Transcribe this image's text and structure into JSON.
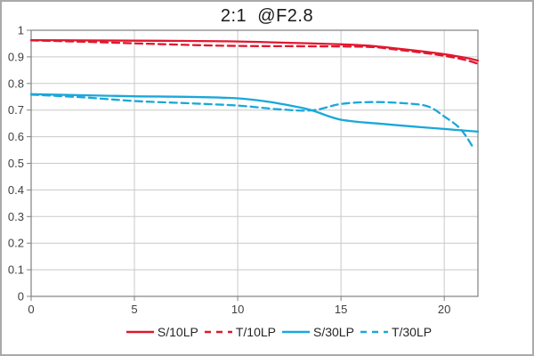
{
  "chart_data": {
    "type": "line",
    "title": "2:1  @F2.8",
    "grid": true,
    "legend_position": "bottom",
    "x_axis": {
      "min": 0,
      "max": 21.63,
      "tick_values": [
        0,
        5,
        10,
        15,
        20
      ],
      "tick_labels": [
        "0",
        "5",
        "10",
        "15",
        "20"
      ]
    },
    "y_axis": {
      "min": 0,
      "max": 1,
      "tick_values": [
        1,
        0.9,
        0.8,
        0.7,
        0.6,
        0.5,
        0.4,
        0.3,
        0.2,
        0.1,
        0
      ],
      "tick_labels": [
        "1",
        "0.9",
        "0.8",
        "0.7",
        "0.6",
        "0.5",
        "0.4",
        "0.3",
        "0.2",
        "0.1",
        "0"
      ]
    },
    "series": [
      {
        "name": "S/10LP",
        "color": "#e0182f",
        "style": "solid",
        "x": [
          0,
          2.5,
          5,
          7.5,
          10,
          12.5,
          15,
          16.5,
          17.5,
          19,
          20,
          21,
          21.63
        ],
        "y": [
          0.963,
          0.962,
          0.961,
          0.96,
          0.958,
          0.953,
          0.947,
          0.941,
          0.933,
          0.92,
          0.91,
          0.897,
          0.886
        ]
      },
      {
        "name": "T/10LP",
        "color": "#e0182f",
        "style": "dashed",
        "x": [
          0,
          2.5,
          5,
          7.5,
          10,
          12.5,
          15,
          16.5,
          17.5,
          19,
          20,
          21,
          21.63
        ],
        "y": [
          0.962,
          0.957,
          0.951,
          0.945,
          0.941,
          0.94,
          0.939,
          0.937,
          0.929,
          0.915,
          0.904,
          0.889,
          0.874
        ]
      },
      {
        "name": "S/30LP",
        "color": "#1aa8da",
        "style": "solid",
        "x": [
          0,
          2.5,
          5,
          7.5,
          10,
          11.5,
          12.8,
          13.6,
          15,
          17,
          18.5,
          20,
          21.63
        ],
        "y": [
          0.76,
          0.756,
          0.752,
          0.75,
          0.744,
          0.731,
          0.713,
          0.699,
          0.664,
          0.648,
          0.638,
          0.629,
          0.619
        ]
      },
      {
        "name": "T/30LP",
        "color": "#1aa8da",
        "style": "dashed",
        "x": [
          0,
          2.5,
          5,
          7.5,
          10,
          12,
          13.6,
          15,
          16.5,
          18,
          19.2,
          20,
          20.8,
          21.45
        ],
        "y": [
          0.758,
          0.748,
          0.734,
          0.726,
          0.717,
          0.703,
          0.699,
          0.723,
          0.73,
          0.726,
          0.714,
          0.676,
          0.628,
          0.553
        ]
      }
    ],
    "colors": {
      "gridline": "#c9c9c9",
      "plot_border": "#808080",
      "tick": "#808080",
      "tick_label": "#404040",
      "title_text": "#1a1a1a",
      "legend_text": "#262626",
      "background": "#ffffff",
      "outer_border": "#a9a9a9"
    }
  }
}
